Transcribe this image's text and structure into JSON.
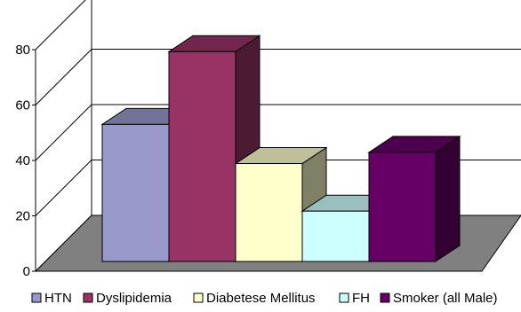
{
  "chart_data": {
    "type": "bar",
    "style": "3d-clustered",
    "categories": [
      "HTN",
      "Dyslipidemia",
      "Diabetese Mellitus",
      "FH",
      "Smoker (all Male)"
    ],
    "values": [
      49,
      75,
      35,
      18,
      39
    ],
    "colors": [
      "#9999cc",
      "#993366",
      "#ffffcc",
      "#ccffff",
      "#660066"
    ],
    "ylim": [
      0,
      80
    ],
    "yticks": [
      0,
      20,
      40,
      60,
      80
    ],
    "grid": true,
    "floor_color": "#808080",
    "legend": {
      "position": "bottom",
      "entries": [
        "HTN",
        "Dyslipidemia",
        "Diabetese Mellitus",
        "FH",
        "Smoker (all Male)"
      ]
    },
    "title": "",
    "xlabel": "",
    "ylabel": ""
  }
}
